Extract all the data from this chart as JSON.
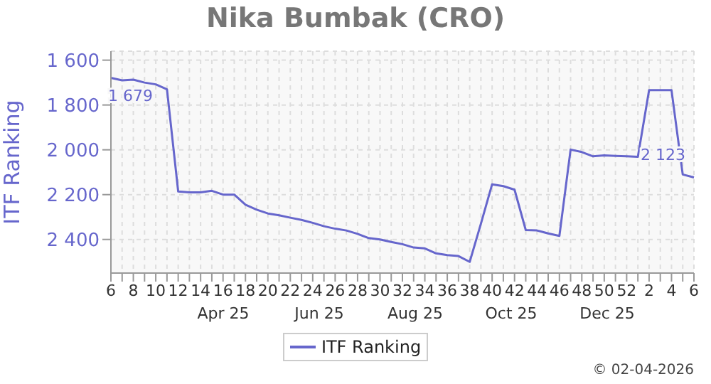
{
  "chart_data": {
    "type": "line",
    "title": "Nika Bumbak (CRO)",
    "ylabel": "ITF Ranking",
    "categories": [
      "6",
      null,
      "8",
      null,
      "10",
      null,
      "12",
      null,
      "14",
      null,
      "16",
      null,
      "18",
      null,
      "20",
      null,
      "22",
      null,
      "24",
      null,
      "26",
      null,
      "28",
      null,
      "30",
      null,
      "32",
      null,
      "34",
      null,
      "36",
      null,
      "38",
      null,
      "40",
      null,
      "42",
      null,
      "44",
      null,
      "46",
      null,
      "48",
      null,
      "50",
      null,
      "52",
      null,
      "2",
      null,
      "4",
      null,
      "6"
    ],
    "series": [
      {
        "name": "ITF Ranking",
        "color": "#6666cc",
        "values": [
          1679,
          1690,
          1687,
          1700,
          1708,
          1730,
          2186,
          2190,
          2190,
          2183,
          2200,
          2200,
          2245,
          2267,
          2284,
          2292,
          2303,
          2313,
          2326,
          2341,
          2352,
          2360,
          2375,
          2394,
          2400,
          2411,
          2421,
          2436,
          2440,
          2462,
          2470,
          2474,
          2500,
          2330,
          2154,
          2162,
          2178,
          2358,
          2360,
          2373,
          2384,
          1999,
          2010,
          2029,
          2025,
          2027,
          2029,
          2031,
          1734,
          1734,
          1734,
          2110,
          2123
        ],
        "value_labels": [
          "1 679",
          null,
          null,
          null,
          null,
          null,
          null,
          null,
          null,
          null,
          null,
          null,
          null,
          null,
          null,
          null,
          null,
          null,
          null,
          null,
          null,
          null,
          null,
          null,
          null,
          null,
          null,
          null,
          null,
          null,
          null,
          null,
          null,
          null,
          null,
          null,
          null,
          null,
          null,
          null,
          null,
          null,
          null,
          null,
          null,
          null,
          null,
          null,
          null,
          null,
          null,
          null,
          "2 123"
        ]
      }
    ],
    "ylim": [
      2550,
      1560
    ],
    "yticks": [
      {
        "value": 1600,
        "label": "1 600"
      },
      {
        "value": 1800,
        "label": "1 800"
      },
      {
        "value": 2000,
        "label": "2 000"
      },
      {
        "value": 2200,
        "label": "2 200"
      },
      {
        "value": 2400,
        "label": "2 400"
      }
    ],
    "grid": true,
    "legend": "bottom",
    "marker": "none",
    "line_style": "solid",
    "annotations": [
      "Apr 25",
      "Jun 25",
      "Aug 25",
      "Oct 25",
      "Dec 25",
      "© 02-04-2026"
    ]
  }
}
